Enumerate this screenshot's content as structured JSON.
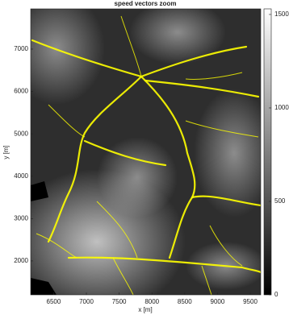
{
  "chart_data": {
    "type": "image",
    "title": "speed vectors zoom",
    "xlabel": "x [m]",
    "ylabel": "y [m]",
    "xlim": [
      6150,
      9660
    ],
    "xticks": [
      6500,
      7000,
      7500,
      8000,
      8500,
      9000,
      9500
    ],
    "ylim": [
      1200,
      7950
    ],
    "yticks": [
      2000,
      3000,
      4000,
      5000,
      6000,
      7000
    ],
    "colorbar": {
      "lim": [
        0,
        1530
      ],
      "ticks": [
        0,
        500,
        1000,
        1500
      ]
    },
    "vector_color": "#ffff00"
  }
}
